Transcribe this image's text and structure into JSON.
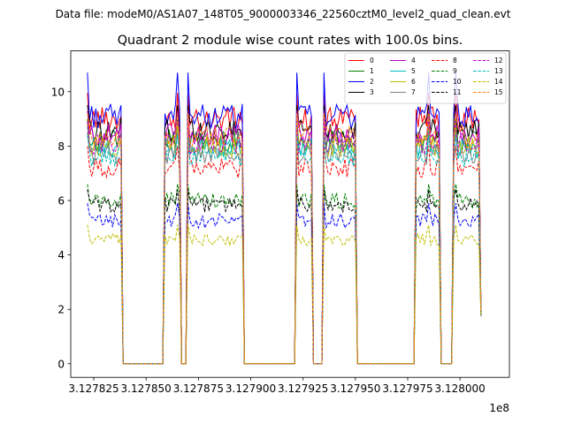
{
  "figure": {
    "suptitle": "Data file: modeM0/AS1A07_148T05_9000003346_22560cztM0_level2_quad_clean.evt"
  },
  "chart_data": {
    "type": "line",
    "title": "Quadrant 2 module wise count rates with 100.0s bins.",
    "xlabel": "",
    "ylabel": "",
    "x_offset_label": "1e8",
    "xlim": [
      3.127814,
      3.1280236
    ],
    "ylim": [
      -0.5,
      11.5
    ],
    "x_ticks": [
      3.127825,
      3.12785,
      3.127875,
      3.1279,
      3.127925,
      3.12795,
      3.127975,
      3.128
    ],
    "x_tick_labels": [
      "3.127825",
      "3.127850",
      "3.127875",
      "3.127900",
      "3.127925",
      "3.127950",
      "3.127975",
      "3.128000"
    ],
    "y_ticks": [
      0,
      2,
      4,
      6,
      8,
      10
    ],
    "y_tick_labels": [
      "0",
      "2",
      "4",
      "6",
      "8",
      "10"
    ],
    "legend_position": "top-right",
    "segments": [
      {
        "start": 3.127822,
        "end": 3.127838,
        "spike": 3.127822
      },
      {
        "start": 3.127859,
        "end": 3.127866,
        "spike": 3.127865
      },
      {
        "start": 3.12787,
        "end": 3.127896,
        "spike": 3.12787
      },
      {
        "start": 3.127922,
        "end": 3.127929,
        "spike": 3.127922
      },
      {
        "start": 3.127935,
        "end": 3.12795,
        "spike": 3.127935
      },
      {
        "start": 3.127979,
        "end": 3.12799,
        "spike": 3.127985
      },
      {
        "start": 3.127997,
        "end": 3.12801,
        "spike": 3.127998
      }
    ],
    "gap_level": 0.0,
    "end_value": 1.5,
    "series": [
      {
        "name": "0",
        "color": "#ff0000",
        "style": "solid",
        "level": 9.0,
        "spike": 9.95
      },
      {
        "name": "1",
        "color": "#008000",
        "style": "solid",
        "level": 8.2,
        "spike": 9.0
      },
      {
        "name": "2",
        "color": "#0000ff",
        "style": "solid",
        "level": 9.1,
        "spike": 10.7
      },
      {
        "name": "3",
        "color": "#000000",
        "style": "solid",
        "level": 8.6,
        "spike": 9.5
      },
      {
        "name": "4",
        "color": "#bf00bf",
        "style": "solid",
        "level": 8.4,
        "spike": 9.3
      },
      {
        "name": "5",
        "color": "#00bfbf",
        "style": "solid",
        "level": 7.9,
        "spike": 8.7
      },
      {
        "name": "6",
        "color": "#bfbf00",
        "style": "solid",
        "level": 8.0,
        "spike": 8.8
      },
      {
        "name": "7",
        "color": "#808080",
        "style": "solid",
        "level": 7.7,
        "spike": 8.5
      },
      {
        "name": "8",
        "color": "#ff0000",
        "style": "dashed",
        "level": 7.2,
        "spike": 8.0
      },
      {
        "name": "9",
        "color": "#008000",
        "style": "dashed",
        "level": 6.0,
        "spike": 6.6
      },
      {
        "name": "10",
        "color": "#0000ff",
        "style": "dashed",
        "level": 5.25,
        "spike": 5.9
      },
      {
        "name": "11",
        "color": "#000000",
        "style": "dashed",
        "level": 5.85,
        "spike": 6.4
      },
      {
        "name": "12",
        "color": "#bf00bf",
        "style": "dashed",
        "level": 8.1,
        "spike": 8.9
      },
      {
        "name": "13",
        "color": "#00bfbf",
        "style": "dashed",
        "level": 7.6,
        "spike": 8.4
      },
      {
        "name": "14",
        "color": "#bfbf00",
        "style": "dashed",
        "level": 4.55,
        "spike": 5.1
      },
      {
        "name": "15",
        "color": "#ff7f0e",
        "style": "dashed",
        "level": 8.3,
        "spike": 9.2
      }
    ]
  }
}
